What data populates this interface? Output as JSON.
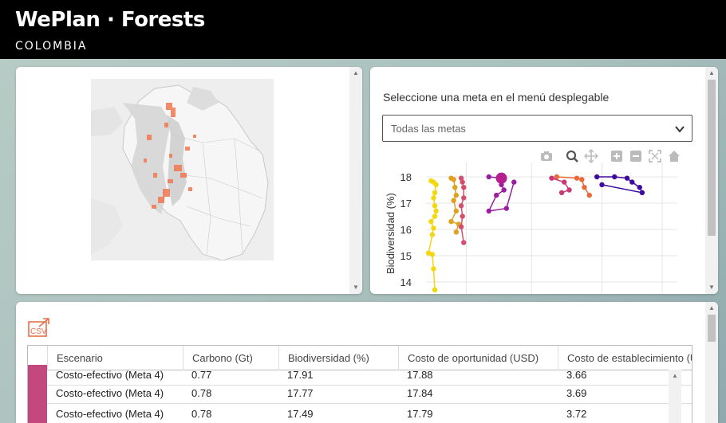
{
  "header": {
    "title": "WePlan · Forests",
    "subtitle": "COLOMBIA"
  },
  "chart_panel": {
    "prompt": "Seleccione una meta en el menú desplegable",
    "select_value": "Todas las metas",
    "modebar": [
      "camera-icon",
      "zoom-icon",
      "pan-icon",
      "zoom-in-icon",
      "zoom-out-icon",
      "autoscale-icon",
      "reset-axes-icon"
    ]
  },
  "chart_data": {
    "type": "scatter",
    "ylabel": "Biodiversidad (%)",
    "yticks": [
      "18",
      "17",
      "16",
      "15",
      "14"
    ],
    "ylim": [
      13.6,
      18.3
    ],
    "xlim": [
      0,
      1
    ],
    "grid": true,
    "series": [
      {
        "color": "#f4d70f",
        "points": [
          [
            0.02,
            17.85
          ],
          [
            0.03,
            17.8
          ],
          [
            0.04,
            17.7
          ],
          [
            0.035,
            17.4
          ],
          [
            0.03,
            17.2
          ],
          [
            0.035,
            16.9
          ],
          [
            0.04,
            16.7
          ],
          [
            0.035,
            16.5
          ],
          [
            0.02,
            16.3
          ],
          [
            0.03,
            16.05
          ],
          [
            0.025,
            15.8
          ],
          [
            0.01,
            15.1
          ],
          [
            0.025,
            15.05
          ],
          [
            0.03,
            14.5
          ],
          [
            0.035,
            13.7
          ]
        ]
      },
      {
        "color": "#e0a020",
        "points": [
          [
            0.1,
            17.95
          ],
          [
            0.11,
            17.9
          ],
          [
            0.115,
            17.6
          ],
          [
            0.12,
            17.3
          ],
          [
            0.11,
            17.1
          ],
          [
            0.12,
            16.7
          ],
          [
            0.1,
            16.3
          ],
          [
            0.13,
            16.2
          ],
          [
            0.12,
            15.9
          ]
        ]
      },
      {
        "color": "#d2506e",
        "points": [
          [
            0.14,
            17.95
          ],
          [
            0.145,
            17.8
          ],
          [
            0.15,
            17.6
          ],
          [
            0.15,
            17.2
          ],
          [
            0.14,
            16.9
          ],
          [
            0.145,
            16.5
          ],
          [
            0.14,
            16.1
          ],
          [
            0.15,
            15.5
          ]
        ]
      },
      {
        "color": "#9b1ea0",
        "points": [
          [
            0.25,
            18.0
          ],
          [
            0.3,
            17.95
          ],
          [
            0.31,
            17.9
          ],
          [
            0.3,
            17.7
          ],
          [
            0.31,
            17.5
          ],
          [
            0.28,
            17.3
          ],
          [
            0.25,
            16.7
          ],
          [
            0.32,
            16.8
          ],
          [
            0.35,
            17.8
          ]
        ]
      },
      {
        "color": "#e96a38",
        "points": [
          [
            0.52,
            18.0
          ],
          [
            0.6,
            17.95
          ],
          [
            0.62,
            17.9
          ],
          [
            0.63,
            17.6
          ],
          [
            0.65,
            17.3
          ]
        ]
      },
      {
        "color": "#c83a78",
        "points": [
          [
            0.5,
            17.95
          ],
          [
            0.55,
            17.8
          ],
          [
            0.57,
            17.5
          ],
          [
            0.54,
            17.4
          ]
        ]
      },
      {
        "color": "#3f0a9e",
        "points": [
          [
            0.68,
            18.0
          ],
          [
            0.75,
            18.0
          ],
          [
            0.8,
            17.95
          ],
          [
            0.82,
            17.8
          ],
          [
            0.85,
            17.6
          ],
          [
            0.86,
            17.4
          ],
          [
            0.7,
            17.7
          ]
        ]
      }
    ]
  },
  "table": {
    "csv_label": "CSV",
    "columns": [
      "Escenario",
      "Carbono (Gt)",
      "Biodiversidad (%)",
      "Costo de oportunidad (USD)",
      "Costo de establecimiento (USD)"
    ],
    "rows": [
      {
        "color": "#c2487e",
        "cells": [
          "Costo-efectivo (Meta 4)",
          "0.77",
          "17.91",
          "17.88",
          "3.66"
        ]
      },
      {
        "color": "#c2487e",
        "cells": [
          "Costo-efectivo (Meta 4)",
          "0.78",
          "17.77",
          "17.84",
          "3.69"
        ]
      },
      {
        "color": "#c2487e",
        "cells": [
          "Costo-efectivo (Meta 4)",
          "0.78",
          "17.49",
          "17.79",
          "3.72"
        ]
      }
    ]
  }
}
